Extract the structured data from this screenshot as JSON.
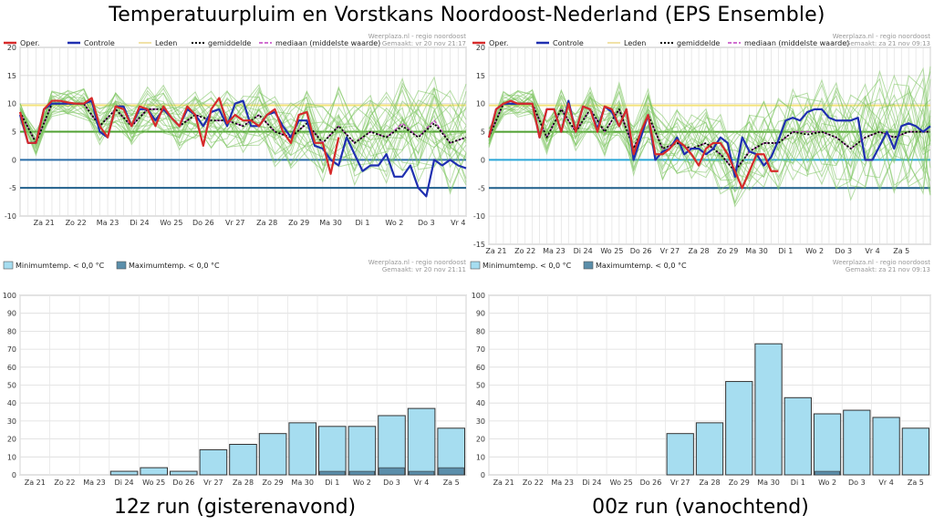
{
  "title": "Temperatuurpluim en Vorstkans Noordoost-Nederland (EPS Ensemble)",
  "run_labels": [
    "12z run (gisterenavond)",
    "00z run (vanochtend)"
  ],
  "chart_data": [
    {
      "id": "plume-12z",
      "type": "line",
      "source": "Weerplaza.nl - regio noordoost",
      "made": "Gemaakt: vr 20 nov 21:17",
      "legend": [
        "Oper.",
        "Controle",
        "Leden",
        "gemiddelde",
        "mediaan (middelste waarde)"
      ],
      "colors": {
        "oper": "#d62a2a",
        "control": "#1f2fb0",
        "members": "#7cc45f",
        "mean": "#000000",
        "median": "#c040c0"
      },
      "ylim": [
        -10,
        20
      ],
      "yticks": [
        -10,
        -5,
        0,
        5,
        10,
        15,
        20
      ],
      "xlim": [
        0,
        112
      ],
      "xtick_labels": [
        "Za 21",
        "Zo 22",
        "Ma 23",
        "Di 24",
        "Wo 25",
        "Do 26",
        "Vr 27",
        "Za 28",
        "Zo 29",
        "Ma 30",
        "Di 1",
        "Wo 2",
        "Do 3",
        "Vr 4"
      ],
      "xtick_pos": [
        6,
        14,
        22,
        30,
        38,
        46,
        54,
        62,
        70,
        78,
        86,
        94,
        102,
        110
      ],
      "hlines": [
        {
          "y": 9.7,
          "color": "#f4e37c",
          "width": 2
        },
        {
          "y": 5,
          "color": "#4fa030",
          "width": 2
        },
        {
          "y": 0,
          "color": "#2a6ea8",
          "width": 2
        },
        {
          "y": -5,
          "color": "#1f5f8b",
          "width": 2
        }
      ],
      "series": [
        {
          "name": "Oper.",
          "x": [
            0,
            2,
            4,
            6,
            8,
            10,
            12,
            14,
            16,
            18,
            20,
            22,
            24,
            26,
            28,
            30,
            32,
            34,
            36,
            38,
            40,
            42,
            44,
            46,
            48,
            50,
            52,
            54,
            56,
            58,
            60,
            62,
            64,
            66,
            68,
            70,
            72,
            74,
            76,
            78,
            80
          ],
          "values": [
            8.5,
            3,
            3,
            9,
            10.5,
            10.5,
            10.2,
            10,
            10,
            11,
            6,
            4,
            9.5,
            9,
            6,
            9.5,
            9,
            6,
            9.5,
            7.5,
            6,
            9.5,
            8,
            2.5,
            9,
            11,
            6.5,
            8,
            7,
            7,
            6,
            8,
            9,
            5,
            3,
            8,
            8.5,
            3,
            3,
            -2.5,
            4
          ]
        },
        {
          "name": "Controle",
          "x": [
            0,
            2,
            4,
            6,
            8,
            10,
            12,
            14,
            16,
            18,
            20,
            22,
            24,
            26,
            28,
            30,
            32,
            34,
            36,
            38,
            40,
            42,
            44,
            46,
            48,
            50,
            52,
            54,
            56,
            58,
            60,
            62,
            64,
            66,
            68,
            70,
            72,
            74,
            76,
            78,
            80,
            82,
            84,
            86,
            88,
            90,
            92,
            94,
            96,
            98,
            100,
            102,
            104,
            106,
            108,
            110,
            112
          ],
          "values": [
            8,
            3,
            3,
            9,
            10,
            10,
            10,
            10,
            10,
            10.5,
            5,
            4,
            9.5,
            9.5,
            6,
            9,
            9,
            7,
            9,
            7.5,
            6,
            9,
            8,
            6,
            8.5,
            9,
            6,
            10,
            10.5,
            6,
            6,
            8,
            8.5,
            6,
            4,
            7,
            7,
            2.5,
            2,
            0,
            -1,
            4,
            1,
            -2,
            -1,
            -1,
            1,
            -3,
            -3,
            -1,
            -5,
            -6.5,
            0,
            -1,
            0,
            -1,
            -1.5
          ]
        },
        {
          "name": "gemiddelde",
          "x": [
            0,
            4,
            8,
            12,
            16,
            20,
            24,
            28,
            32,
            36,
            40,
            44,
            48,
            52,
            56,
            60,
            64,
            68,
            72,
            76,
            80,
            84,
            88,
            92,
            96,
            100,
            104,
            108,
            112
          ],
          "values": [
            8.5,
            3,
            10,
            10,
            10,
            6,
            9,
            6,
            9,
            9,
            6,
            8,
            7,
            7,
            6,
            8,
            5,
            4,
            6.5,
            3,
            6,
            3,
            5,
            4,
            6,
            4,
            6.5,
            3,
            4
          ]
        },
        {
          "name": "mediaan (middelste waarde)",
          "x": [
            0,
            4,
            8,
            12,
            16,
            20,
            24,
            28,
            32,
            36,
            40,
            44,
            48,
            52,
            56,
            60,
            64,
            68,
            72,
            76,
            80,
            84,
            88,
            92,
            96,
            100,
            104,
            108,
            112
          ],
          "values": [
            8.5,
            3,
            10,
            10,
            10,
            6,
            9,
            6,
            9,
            9,
            6,
            8,
            7,
            7,
            6,
            8,
            5,
            4,
            6.5,
            3,
            6,
            3,
            5,
            4,
            6.5,
            4,
            7,
            3,
            4
          ]
        }
      ]
    },
    {
      "id": "plume-00z",
      "type": "line",
      "source": "Weerplaza.nl - regio noordoost",
      "made": "Gemaakt: za 21 nov 09:13",
      "legend": [
        "Oper.",
        "Controle",
        "Leden",
        "gemiddelde",
        "mediaan (middelste waarde)"
      ],
      "colors": {
        "oper": "#d62a2a",
        "control": "#1f2fb0",
        "members": "#7cc45f",
        "mean": "#000000",
        "median": "#c040c0"
      },
      "ylim": [
        -15,
        20
      ],
      "yticks": [
        -15,
        -10,
        -5,
        0,
        5,
        10,
        15,
        20
      ],
      "xlim": [
        0,
        122
      ],
      "xtick_labels": [
        "Za 21",
        "Zo 22",
        "Ma 23",
        "Di 24",
        "Wo 25",
        "Do 26",
        "Vr 27",
        "Za 28",
        "Zo 29",
        "Ma 30",
        "Di 1",
        "Wo 2",
        "Do 3",
        "Vr 4",
        "Za 5"
      ],
      "xtick_pos": [
        2,
        10,
        18,
        26,
        34,
        42,
        50,
        58,
        66,
        74,
        82,
        90,
        98,
        106,
        114
      ],
      "hlines": [
        {
          "y": 9.7,
          "color": "#f4e37c",
          "width": 2
        },
        {
          "y": 5,
          "color": "#4fa030",
          "width": 2
        },
        {
          "y": 0,
          "color": "#2aa6d8",
          "width": 2
        },
        {
          "y": -5,
          "color": "#1f5f8b",
          "width": 2
        }
      ],
      "series": [
        {
          "name": "Oper.",
          "x": [
            0,
            2,
            4,
            6,
            8,
            10,
            12,
            14,
            16,
            18,
            20,
            22,
            24,
            26,
            28,
            30,
            32,
            34,
            36,
            38,
            40,
            42,
            44,
            46,
            48,
            50,
            52,
            54,
            56,
            58,
            60,
            62,
            64,
            66,
            68,
            70,
            72,
            74,
            76,
            78,
            80
          ],
          "values": [
            4,
            9,
            10,
            10.5,
            10,
            10,
            10,
            4,
            9,
            9,
            5,
            10,
            5,
            9.5,
            9,
            5,
            9.5,
            9,
            6,
            9,
            1,
            5,
            8,
            1,
            1,
            2,
            3.5,
            2.5,
            1,
            -1,
            2,
            3,
            3,
            1,
            -2,
            -5,
            -2,
            1,
            1,
            -2,
            -2
          ]
        },
        {
          "name": "Controle",
          "x": [
            0,
            2,
            4,
            6,
            8,
            10,
            12,
            14,
            16,
            18,
            20,
            22,
            24,
            26,
            28,
            30,
            32,
            34,
            36,
            38,
            40,
            42,
            44,
            46,
            48,
            50,
            52,
            54,
            56,
            58,
            60,
            62,
            64,
            66,
            68,
            70,
            72,
            74,
            76,
            78,
            80,
            82,
            84,
            86,
            88,
            90,
            92,
            94,
            96,
            98,
            100,
            102,
            104,
            106,
            108,
            110,
            112,
            114,
            116,
            118,
            120,
            122
          ],
          "values": [
            4,
            9,
            10,
            10,
            10,
            10,
            10,
            4,
            9,
            9,
            5,
            10.5,
            5,
            9.5,
            9,
            5.5,
            9.5,
            8.5,
            6,
            9,
            0,
            4,
            8,
            0,
            1.5,
            2,
            4,
            1,
            2,
            2,
            1,
            2,
            4,
            3,
            -3,
            4,
            1.5,
            1,
            -1,
            0.5,
            3.5,
            7,
            7.5,
            7,
            8.5,
            9,
            9,
            7.5,
            7,
            7,
            7,
            7.5,
            0,
            0,
            2.5,
            5,
            2,
            6,
            6.5,
            6,
            5,
            6
          ]
        },
        {
          "name": "gemiddelde",
          "x": [
            0,
            4,
            8,
            12,
            16,
            20,
            24,
            28,
            32,
            36,
            40,
            44,
            48,
            52,
            56,
            60,
            64,
            68,
            72,
            76,
            80,
            84,
            88,
            92,
            96,
            100,
            104,
            108,
            112,
            116,
            120,
            122
          ],
          "values": [
            4,
            10,
            10,
            10,
            4,
            9,
            5,
            9,
            5,
            9,
            2,
            8,
            2,
            3,
            2,
            3,
            1,
            -2,
            1.5,
            3,
            3,
            5,
            4.5,
            5,
            4,
            2,
            4,
            5,
            4,
            5,
            5,
            5
          ]
        },
        {
          "name": "mediaan (middelste waarde)",
          "x": [
            0,
            4,
            8,
            12,
            16,
            20,
            24,
            28,
            32,
            36,
            40,
            44,
            48,
            52,
            56,
            60,
            64,
            68,
            72,
            76,
            80,
            84,
            88,
            92,
            96,
            100,
            104,
            108,
            112,
            116,
            120,
            122
          ],
          "values": [
            4,
            10,
            10,
            10,
            4,
            9,
            5,
            9,
            5,
            9,
            2,
            8,
            2,
            3,
            2,
            3,
            1,
            -2,
            1.5,
            3,
            3,
            5,
            5,
            5,
            4,
            2,
            4,
            5,
            4,
            5,
            5,
            5
          ]
        }
      ]
    },
    {
      "id": "frost-12z",
      "type": "bar",
      "source": "Weerplaza.nl - regio noordoost",
      "made": "Gemaakt: vr 20 nov 21:11",
      "legend": [
        "Minimumtemp. < 0,0 °C",
        "Maximumtemp. < 0,0 °C"
      ],
      "colors": {
        "min": "#a6ddf0",
        "max": "#5b8eaa"
      },
      "ylim": [
        0,
        100
      ],
      "yticks": [
        0,
        10,
        20,
        30,
        40,
        50,
        60,
        70,
        80,
        90,
        100
      ],
      "categories": [
        "Za 21",
        "Zo 22",
        "Ma 23",
        "Di 24",
        "Wo 25",
        "Do 26",
        "Vr 27",
        "Za 28",
        "Zo 29",
        "Ma 30",
        "Di 1",
        "Wo 2",
        "Do 3",
        "Vr 4",
        "Za 5"
      ],
      "series": [
        {
          "name": "Minimumtemp. < 0,0 °C",
          "values": [
            0,
            0,
            0,
            2,
            4,
            2,
            14,
            17,
            23,
            29,
            27,
            27,
            33,
            37,
            26
          ]
        },
        {
          "name": "Maximumtemp. < 0,0 °C",
          "values": [
            0,
            0,
            0,
            0,
            0,
            0,
            0,
            0,
            0,
            0,
            2,
            2,
            4,
            2,
            4
          ]
        }
      ]
    },
    {
      "id": "frost-00z",
      "type": "bar",
      "source": "Weerplaza.nl - regio noordoost",
      "made": "Gemaakt: za 21 nov 09:13",
      "legend": [
        "Minimumtemp. < 0,0 °C",
        "Maximumtemp. < 0,0 °C"
      ],
      "colors": {
        "min": "#a6ddf0",
        "max": "#5b8eaa"
      },
      "ylim": [
        0,
        100
      ],
      "yticks": [
        0,
        10,
        20,
        30,
        40,
        50,
        60,
        70,
        80,
        90,
        100
      ],
      "categories": [
        "Za 21",
        "Zo 22",
        "Ma 23",
        "Di 24",
        "Wo 25",
        "Do 26",
        "Vr 27",
        "Za 28",
        "Zo 29",
        "Ma 30",
        "Di 1",
        "Wo 2",
        "Do 3",
        "Vr 4",
        "Za 5"
      ],
      "series": [
        {
          "name": "Minimumtemp. < 0,0 °C",
          "values": [
            0,
            0,
            0,
            0,
            0,
            0,
            23,
            29,
            52,
            73,
            43,
            34,
            36,
            32,
            26
          ]
        },
        {
          "name": "Maximumtemp. < 0,0 °C",
          "values": [
            0,
            0,
            0,
            0,
            0,
            0,
            0,
            0,
            0,
            0,
            0,
            2,
            0,
            0,
            0
          ]
        }
      ]
    }
  ]
}
